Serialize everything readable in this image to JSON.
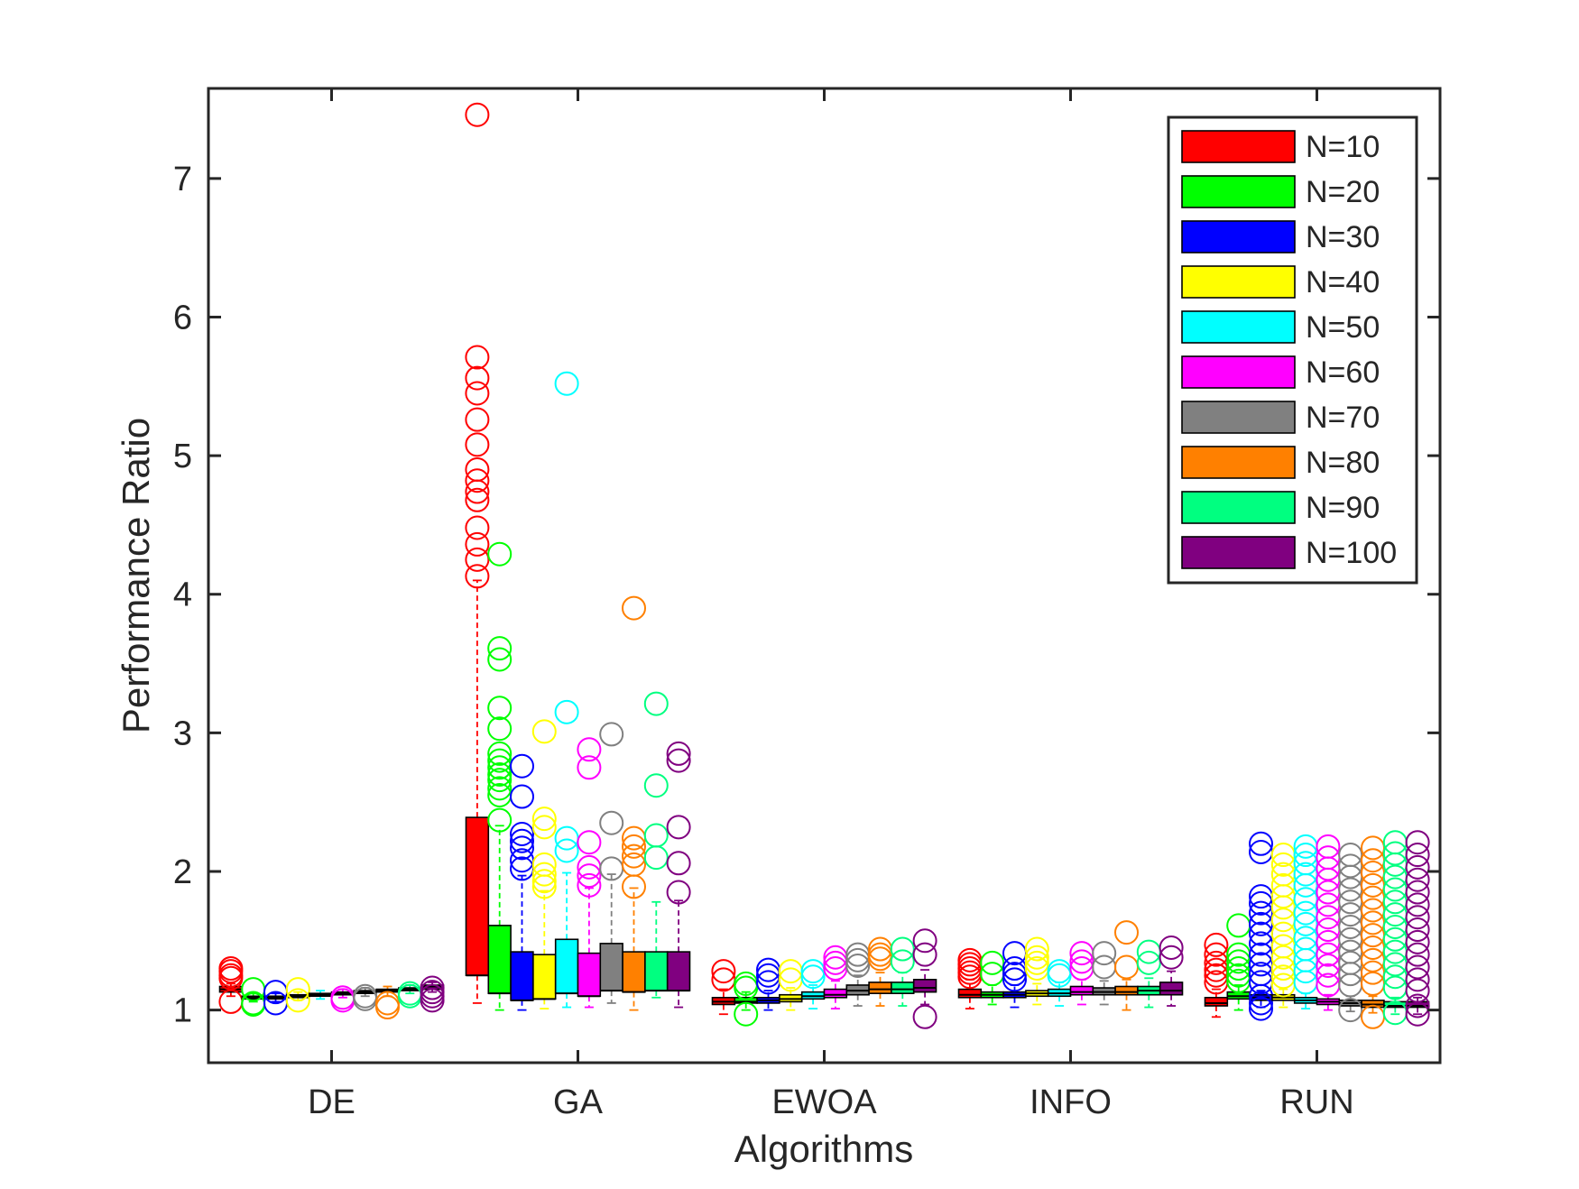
{
  "chart_data": {
    "type": "box",
    "xlabel": "Algorithms",
    "ylabel": "Performance Ratio",
    "ylim": [
      0.62,
      7.65
    ],
    "yticks": [
      1,
      2,
      3,
      4,
      5,
      6,
      7
    ],
    "grid": false,
    "legend_position": "top-right",
    "categories": [
      "DE",
      "GA",
      "EWOA",
      "INFO",
      "RUN"
    ],
    "series": [
      {
        "name": "N=10",
        "color": "#ff0000"
      },
      {
        "name": "N=20",
        "color": "#00ff00"
      },
      {
        "name": "N=30",
        "color": "#0000ff"
      },
      {
        "name": "N=40",
        "color": "#ffff00"
      },
      {
        "name": "N=50",
        "color": "#00ffff"
      },
      {
        "name": "N=60",
        "color": "#ff00ff"
      },
      {
        "name": "N=70",
        "color": "#808080"
      },
      {
        "name": "N=80",
        "color": "#ff8000"
      },
      {
        "name": "N=90",
        "color": "#00ff80"
      },
      {
        "name": "N=100",
        "color": "#800080"
      }
    ],
    "boxes": [
      [
        {
          "q1": 1.13,
          "med": 1.15,
          "q3": 1.17,
          "wl": 1.1,
          "wh": 1.19,
          "out": [
            1.3,
            1.28,
            1.25,
            1.23,
            1.06
          ]
        },
        {
          "q1": 1.08,
          "med": 1.09,
          "q3": 1.1,
          "wl": 1.06,
          "wh": 1.12,
          "out": [
            1.15,
            1.05,
            1.04
          ]
        },
        {
          "q1": 1.08,
          "med": 1.09,
          "q3": 1.1,
          "wl": 1.06,
          "wh": 1.12,
          "out": [
            1.13,
            1.05
          ]
        },
        {
          "q1": 1.09,
          "med": 1.1,
          "q3": 1.11,
          "wl": 1.07,
          "wh": 1.13,
          "out": [
            1.15,
            1.07
          ]
        },
        {
          "q1": 1.1,
          "med": 1.11,
          "q3": 1.12,
          "wl": 1.08,
          "wh": 1.14,
          "out": []
        },
        {
          "q1": 1.11,
          "med": 1.12,
          "q3": 1.13,
          "wl": 1.09,
          "wh": 1.15,
          "out": [
            1.09,
            1.07
          ]
        },
        {
          "q1": 1.12,
          "med": 1.13,
          "q3": 1.14,
          "wl": 1.1,
          "wh": 1.16,
          "out": [
            1.1,
            1.08
          ]
        },
        {
          "q1": 1.13,
          "med": 1.14,
          "q3": 1.15,
          "wl": 1.1,
          "wh": 1.17,
          "out": [
            1.05,
            1.02
          ]
        },
        {
          "q1": 1.14,
          "med": 1.15,
          "q3": 1.16,
          "wl": 1.12,
          "wh": 1.18,
          "out": [
            1.12,
            1.1
          ]
        },
        {
          "q1": 1.15,
          "med": 1.17,
          "q3": 1.18,
          "wl": 1.13,
          "wh": 1.2,
          "out": [
            1.16,
            1.13,
            1.1,
            1.07
          ]
        }
      ],
      [
        {
          "q1": 1.25,
          "med": 1.25,
          "q3": 2.39,
          "wl": 1.05,
          "wh": 4.1,
          "out": [
            7.46,
            5.71,
            5.56,
            5.45,
            5.26,
            5.08,
            4.9,
            4.82,
            4.74,
            4.68,
            4.48,
            4.36,
            4.25,
            4.13
          ]
        },
        {
          "q1": 1.12,
          "med": 1.12,
          "q3": 1.61,
          "wl": 1.0,
          "wh": 2.33,
          "out": [
            4.29,
            3.61,
            3.53,
            3.18,
            3.03,
            2.85,
            2.8,
            2.75,
            2.7,
            2.66,
            2.6,
            2.55,
            2.37
          ]
        },
        {
          "q1": 1.07,
          "med": 1.07,
          "q3": 1.42,
          "wl": 1.0,
          "wh": 1.97,
          "out": [
            2.76,
            2.54,
            2.27,
            2.22,
            2.17,
            2.08,
            2.02
          ]
        },
        {
          "q1": 1.08,
          "med": 1.08,
          "q3": 1.4,
          "wl": 1.01,
          "wh": 1.86,
          "out": [
            3.01,
            2.38,
            2.32,
            2.05,
            1.98,
            1.93,
            1.89
          ]
        },
        {
          "q1": 1.12,
          "med": 1.12,
          "q3": 1.51,
          "wl": 1.02,
          "wh": 1.99,
          "out": [
            5.52,
            3.15,
            2.24,
            2.15
          ]
        },
        {
          "q1": 1.1,
          "med": 1.1,
          "q3": 1.41,
          "wl": 1.02,
          "wh": 1.88,
          "out": [
            2.88,
            2.75,
            2.21,
            2.03,
            1.97,
            1.9
          ]
        },
        {
          "q1": 1.14,
          "med": 1.14,
          "q3": 1.48,
          "wl": 1.05,
          "wh": 1.98,
          "out": [
            2.99,
            2.35,
            2.02
          ]
        },
        {
          "q1": 1.13,
          "med": 1.13,
          "q3": 1.42,
          "wl": 1.0,
          "wh": 1.88,
          "out": [
            3.9,
            2.24,
            2.18,
            2.11,
            2.05,
            1.89
          ]
        },
        {
          "q1": 1.14,
          "med": 1.14,
          "q3": 1.42,
          "wl": 1.09,
          "wh": 1.78,
          "out": [
            3.21,
            2.62,
            2.26,
            2.1
          ]
        },
        {
          "q1": 1.14,
          "med": 1.14,
          "q3": 1.42,
          "wl": 1.02,
          "wh": 1.79,
          "out": [
            2.85,
            2.8,
            2.32,
            2.06,
            1.85
          ]
        }
      ],
      [
        {
          "q1": 1.04,
          "med": 1.06,
          "q3": 1.09,
          "wl": 0.97,
          "wh": 1.15,
          "out": [
            1.28,
            1.22
          ]
        },
        {
          "q1": 1.05,
          "med": 1.06,
          "q3": 1.09,
          "wl": 1.0,
          "wh": 1.13,
          "out": [
            1.19,
            1.16,
            0.97
          ]
        },
        {
          "q1": 1.05,
          "med": 1.07,
          "q3": 1.09,
          "wl": 1.0,
          "wh": 1.14,
          "out": [
            1.29,
            1.25,
            1.2
          ]
        },
        {
          "q1": 1.06,
          "med": 1.08,
          "q3": 1.11,
          "wl": 1.0,
          "wh": 1.16,
          "out": [
            1.28,
            1.22
          ]
        },
        {
          "q1": 1.08,
          "med": 1.1,
          "q3": 1.13,
          "wl": 1.01,
          "wh": 1.18,
          "out": [
            1.28,
            1.24
          ]
        },
        {
          "q1": 1.09,
          "med": 1.11,
          "q3": 1.15,
          "wl": 1.01,
          "wh": 1.21,
          "out": [
            1.38,
            1.34,
            1.3
          ]
        },
        {
          "q1": 1.11,
          "med": 1.14,
          "q3": 1.18,
          "wl": 1.03,
          "wh": 1.25,
          "out": [
            1.4,
            1.36,
            1.32
          ]
        },
        {
          "q1": 1.12,
          "med": 1.15,
          "q3": 1.2,
          "wl": 1.03,
          "wh": 1.27,
          "out": [
            1.44,
            1.4,
            1.37
          ]
        },
        {
          "q1": 1.12,
          "med": 1.15,
          "q3": 1.2,
          "wl": 1.03,
          "wh": 1.27,
          "out": [
            1.44,
            1.35
          ]
        },
        {
          "q1": 1.13,
          "med": 1.16,
          "q3": 1.22,
          "wl": 1.04,
          "wh": 1.29,
          "out": [
            1.5,
            1.4,
            0.95
          ]
        }
      ],
      [
        {
          "q1": 1.09,
          "med": 1.11,
          "q3": 1.15,
          "wl": 1.01,
          "wh": 1.22,
          "out": [
            1.36,
            1.33,
            1.3,
            1.27,
            1.24
          ]
        },
        {
          "q1": 1.09,
          "med": 1.11,
          "q3": 1.13,
          "wl": 1.04,
          "wh": 1.18,
          "out": [
            1.34,
            1.26
          ]
        },
        {
          "q1": 1.09,
          "med": 1.11,
          "q3": 1.13,
          "wl": 1.02,
          "wh": 1.18,
          "out": [
            1.41,
            1.3,
            1.26,
            1.22
          ]
        },
        {
          "q1": 1.1,
          "med": 1.12,
          "q3": 1.14,
          "wl": 1.04,
          "wh": 1.19,
          "out": [
            1.44,
            1.38,
            1.34,
            1.3
          ]
        },
        {
          "q1": 1.1,
          "med": 1.12,
          "q3": 1.15,
          "wl": 1.03,
          "wh": 1.2,
          "out": [
            1.28,
            1.25
          ]
        },
        {
          "q1": 1.11,
          "med": 1.13,
          "q3": 1.17,
          "wl": 1.04,
          "wh": 1.22,
          "out": [
            1.41,
            1.35,
            1.3
          ]
        },
        {
          "q1": 1.11,
          "med": 1.13,
          "q3": 1.16,
          "wl": 1.04,
          "wh": 1.21,
          "out": [
            1.41,
            1.31
          ]
        },
        {
          "q1": 1.11,
          "med": 1.13,
          "q3": 1.17,
          "wl": 1.0,
          "wh": 1.22,
          "out": [
            1.56,
            1.31
          ]
        },
        {
          "q1": 1.11,
          "med": 1.14,
          "q3": 1.17,
          "wl": 1.02,
          "wh": 1.23,
          "out": [
            1.42,
            1.34
          ]
        },
        {
          "q1": 1.11,
          "med": 1.14,
          "q3": 1.2,
          "wl": 1.03,
          "wh": 1.28,
          "out": [
            1.45,
            1.38
          ]
        }
      ],
      [
        {
          "q1": 1.03,
          "med": 1.05,
          "q3": 1.09,
          "wl": 0.95,
          "wh": 1.15,
          "out": [
            1.47,
            1.4,
            1.34,
            1.29,
            1.25,
            1.2
          ]
        },
        {
          "q1": 1.08,
          "med": 1.1,
          "q3": 1.13,
          "wl": 1.0,
          "wh": 1.18,
          "out": [
            1.61,
            1.4,
            1.35,
            1.3,
            1.25,
            1.21
          ]
        },
        {
          "q1": 1.07,
          "med": 1.09,
          "q3": 1.11,
          "wl": 1.02,
          "wh": 1.14,
          "out": [
            2.2,
            2.14,
            1.82,
            1.77,
            1.7,
            1.62,
            1.55,
            1.48,
            1.4,
            1.33,
            1.26,
            1.2,
            1.1,
            1.05,
            1.01
          ]
        },
        {
          "q1": 1.07,
          "med": 1.09,
          "q3": 1.11,
          "wl": 1.02,
          "wh": 1.15,
          "out": [
            2.12,
            2.05,
            1.98,
            1.9,
            1.82,
            1.74,
            1.65,
            1.55,
            1.46,
            1.38,
            1.3,
            1.24,
            1.18
          ]
        },
        {
          "q1": 1.05,
          "med": 1.07,
          "q3": 1.09,
          "wl": 1.01,
          "wh": 1.12,
          "out": [
            2.18,
            2.12,
            2.06,
            1.98,
            1.9,
            1.8,
            1.7,
            1.62,
            1.52,
            1.44,
            1.36,
            1.28,
            1.2
          ]
        },
        {
          "q1": 1.04,
          "med": 1.06,
          "q3": 1.08,
          "wl": 1.0,
          "wh": 1.11,
          "out": [
            2.18,
            2.1,
            2.02,
            1.94,
            1.85,
            1.76,
            1.67,
            1.58,
            1.49,
            1.4,
            1.32,
            1.25,
            1.18
          ]
        },
        {
          "q1": 1.03,
          "med": 1.05,
          "q3": 1.07,
          "wl": 0.99,
          "wh": 1.1,
          "out": [
            2.12,
            2.04,
            1.96,
            1.87,
            1.78,
            1.69,
            1.6,
            1.51,
            1.42,
            1.34,
            1.26,
            1.18,
            1.0
          ]
        },
        {
          "q1": 1.02,
          "med": 1.04,
          "q3": 1.07,
          "wl": 0.98,
          "wh": 1.1,
          "out": [
            2.17,
            2.08,
            1.99,
            1.9,
            1.81,
            1.72,
            1.63,
            1.54,
            1.45,
            1.36,
            1.27,
            1.19,
            0.95
          ]
        },
        {
          "q1": 1.02,
          "med": 1.03,
          "q3": 1.06,
          "wl": 0.97,
          "wh": 1.09,
          "out": [
            2.21,
            2.13,
            2.05,
            1.96,
            1.87,
            1.78,
            1.69,
            1.6,
            1.51,
            1.42,
            1.33,
            1.24,
            1.16,
            0.98
          ]
        },
        {
          "q1": 1.02,
          "med": 1.03,
          "q3": 1.06,
          "wl": 0.97,
          "wh": 1.09,
          "out": [
            2.21,
            2.12,
            2.03,
            1.94,
            1.85,
            1.76,
            1.67,
            1.58,
            1.49,
            1.4,
            1.31,
            1.22,
            1.14,
            1.03,
            0.97
          ]
        }
      ]
    ]
  }
}
